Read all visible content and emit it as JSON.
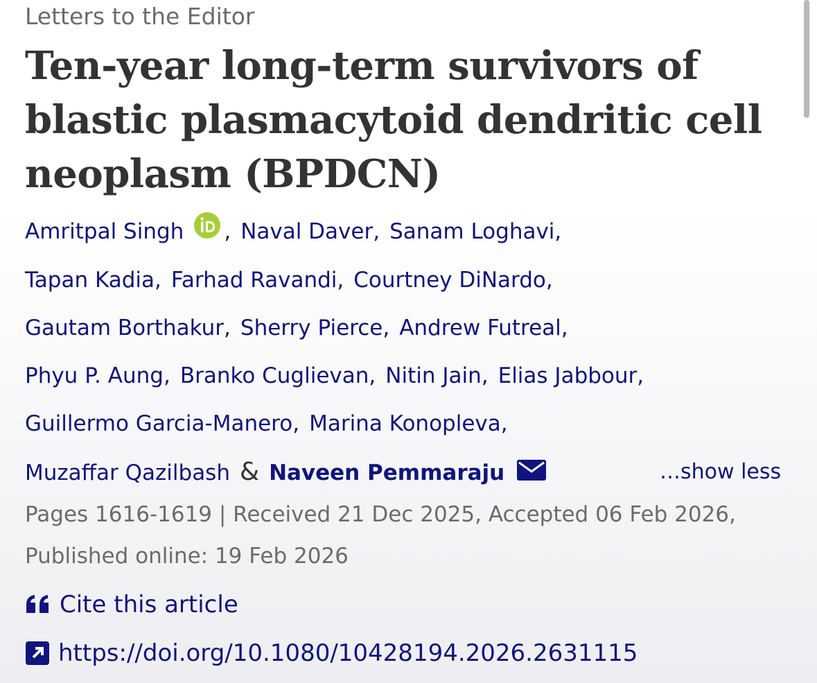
{
  "section": "Letters to the Editor",
  "title": "Ten-year long-term survivors of blastic plasmacytoid dendritic cell neoplasm (BPDCN)",
  "authors": [
    {
      "name": "Amritpal Singh",
      "orcid": true
    },
    {
      "name": "Naval Daver"
    },
    {
      "name": "Sanam Loghavi"
    },
    {
      "name": "Tapan Kadia"
    },
    {
      "name": "Farhad Ravandi"
    },
    {
      "name": "Courtney DiNardo"
    },
    {
      "name": "Gautam Borthakur"
    },
    {
      "name": "Sherry Pierce"
    },
    {
      "name": "Andrew Futreal"
    },
    {
      "name": "Phyu P. Aung"
    },
    {
      "name": "Branko Cuglievan"
    },
    {
      "name": "Nitin Jain"
    },
    {
      "name": "Elias Jabbour"
    },
    {
      "name": "Guillermo Garcia-Manero"
    },
    {
      "name": "Marina Konopleva"
    },
    {
      "name": "Muzaffar Qazilbash"
    },
    {
      "name": "Naveen Pemmaraju",
      "corresponding": true
    }
  ],
  "separator": ",",
  "last_separator": "&",
  "show_less": "…show less",
  "publication": "Pages 1616-1619 | Received 21 Dec 2025, Accepted 06 Feb 2026, Published online: 19 Feb 2026",
  "cite": "Cite this article",
  "doi": "https://doi.org/10.1080/10428194.2026.2631115"
}
